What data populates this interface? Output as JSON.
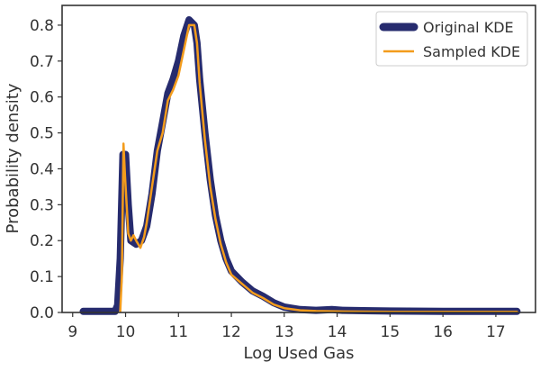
{
  "chart_data": {
    "type": "line",
    "title": "",
    "xlabel": "Log Used Gas",
    "ylabel": "Probability density",
    "xlim": [
      8.8,
      17.75
    ],
    "ylim": [
      0.0,
      0.855
    ],
    "xticks": [
      9,
      10,
      11,
      12,
      13,
      14,
      15,
      16,
      17
    ],
    "yticks": [
      0.0,
      0.1,
      0.2,
      0.3,
      0.4,
      0.5,
      0.6,
      0.7,
      0.8
    ],
    "grid": false,
    "legend_position": "top-right",
    "series": [
      {
        "name": "Original KDE",
        "color": "#262b6e",
        "style": "thick",
        "points": [
          [
            9.2,
            0.003
          ],
          [
            9.5,
            0.003
          ],
          [
            9.8,
            0.003
          ],
          [
            9.85,
            0.02
          ],
          [
            9.9,
            0.15
          ],
          [
            9.95,
            0.44
          ],
          [
            10.0,
            0.44
          ],
          [
            10.05,
            0.3
          ],
          [
            10.1,
            0.2
          ],
          [
            10.2,
            0.19
          ],
          [
            10.3,
            0.2
          ],
          [
            10.4,
            0.24
          ],
          [
            10.5,
            0.33
          ],
          [
            10.6,
            0.45
          ],
          [
            10.7,
            0.53
          ],
          [
            10.8,
            0.61
          ],
          [
            10.9,
            0.65
          ],
          [
            11.0,
            0.7
          ],
          [
            11.1,
            0.77
          ],
          [
            11.2,
            0.815
          ],
          [
            11.3,
            0.8
          ],
          [
            11.35,
            0.75
          ],
          [
            11.4,
            0.65
          ],
          [
            11.5,
            0.5
          ],
          [
            11.6,
            0.37
          ],
          [
            11.7,
            0.27
          ],
          [
            11.8,
            0.2
          ],
          [
            11.9,
            0.15
          ],
          [
            12.0,
            0.115
          ],
          [
            12.2,
            0.085
          ],
          [
            12.4,
            0.06
          ],
          [
            12.6,
            0.045
          ],
          [
            12.8,
            0.027
          ],
          [
            13.0,
            0.015
          ],
          [
            13.3,
            0.008
          ],
          [
            13.6,
            0.006
          ],
          [
            13.9,
            0.008
          ],
          [
            14.1,
            0.006
          ],
          [
            14.5,
            0.005
          ],
          [
            15.0,
            0.004
          ],
          [
            16.0,
            0.003
          ],
          [
            17.0,
            0.003
          ],
          [
            17.4,
            0.003
          ]
        ]
      },
      {
        "name": "Sampled KDE",
        "color": "#f39c1c",
        "style": "thin",
        "points": [
          [
            9.9,
            0.003
          ],
          [
            9.93,
            0.1
          ],
          [
            9.96,
            0.47
          ],
          [
            9.99,
            0.38
          ],
          [
            10.05,
            0.22
          ],
          [
            10.1,
            0.2
          ],
          [
            10.15,
            0.215
          ],
          [
            10.2,
            0.2
          ],
          [
            10.28,
            0.18
          ],
          [
            10.35,
            0.21
          ],
          [
            10.4,
            0.25
          ],
          [
            10.5,
            0.35
          ],
          [
            10.6,
            0.45
          ],
          [
            10.7,
            0.5
          ],
          [
            10.8,
            0.59
          ],
          [
            10.9,
            0.62
          ],
          [
            11.0,
            0.66
          ],
          [
            11.1,
            0.73
          ],
          [
            11.2,
            0.8
          ],
          [
            11.3,
            0.8
          ],
          [
            11.35,
            0.75
          ],
          [
            11.4,
            0.64
          ],
          [
            11.5,
            0.48
          ],
          [
            11.6,
            0.35
          ],
          [
            11.7,
            0.26
          ],
          [
            11.8,
            0.19
          ],
          [
            11.9,
            0.14
          ],
          [
            12.0,
            0.105
          ],
          [
            12.2,
            0.08
          ],
          [
            12.4,
            0.055
          ],
          [
            12.6,
            0.04
          ],
          [
            12.8,
            0.022
          ],
          [
            13.0,
            0.012
          ],
          [
            13.3,
            0.006
          ],
          [
            13.6,
            0.004
          ],
          [
            14.0,
            0.003
          ],
          [
            15.0,
            0.002
          ],
          [
            16.0,
            0.002
          ],
          [
            17.0,
            0.002
          ],
          [
            17.4,
            0.002
          ]
        ]
      }
    ]
  }
}
